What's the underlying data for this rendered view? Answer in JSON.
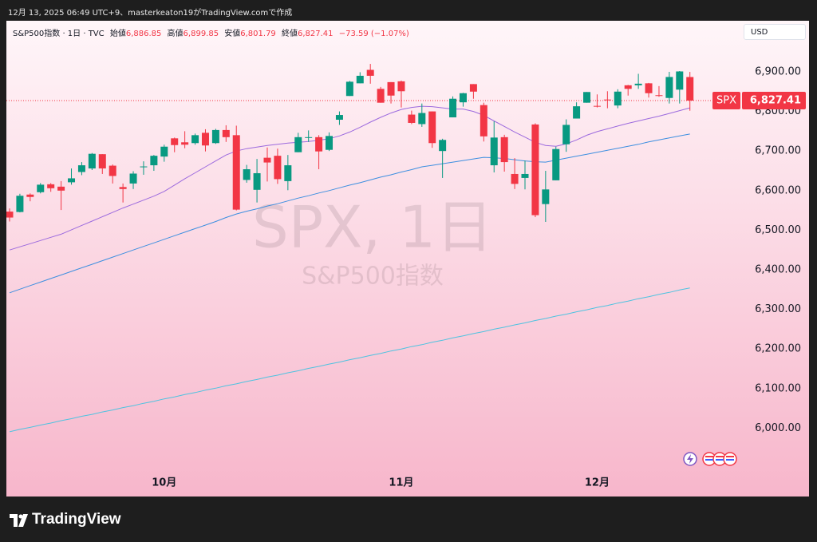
{
  "header": "12月 13, 2025 06:49 UTC+9、masterkeaton19がTradingView.comで作成",
  "logo": "TradingView",
  "chart_data": {
    "type": "candlestick",
    "symbol_line": "S&P500指数 · 1日 · TVC",
    "legend": {
      "open_label": "始値",
      "open": "6,886.85",
      "high_label": "高値",
      "high": "6,899.85",
      "low_label": "安値",
      "low": "6,801.79",
      "close_label": "終値",
      "close": "6,827.41",
      "change": "−73.59 (−1.07%)"
    },
    "currency": "USD",
    "watermark": "SPX, 1日",
    "watermark_sub": "S&P500指数",
    "last_tag": {
      "symbol": "SPX",
      "price": "6,827.41"
    },
    "up_color": "#089981",
    "down_color": "#f23645",
    "categories": [
      null,
      null,
      null,
      null,
      null,
      null,
      null,
      null,
      null,
      null,
      null,
      null,
      null,
      null,
      null,
      "10月",
      null,
      null,
      null,
      null,
      null,
      null,
      null,
      null,
      null,
      null,
      null,
      null,
      null,
      null,
      null,
      null,
      null,
      null,
      null,
      null,
      null,
      null,
      "11月",
      null,
      null,
      null,
      null,
      null,
      null,
      null,
      null,
      null,
      null,
      null,
      null,
      null,
      null,
      null,
      null,
      null,
      null,
      "12月",
      null,
      null,
      null,
      null,
      null,
      null,
      null,
      null,
      null
    ],
    "open": [
      6547,
      6546,
      6590,
      6596,
      6616,
      6610,
      6621,
      6647,
      6656,
      6692,
      6663,
      6609,
      6618,
      6661,
      6664,
      6686,
      6732,
      6722,
      6720,
      6746,
      6720,
      6753,
      6740,
      6627,
      6602,
      6683,
      6688,
      6624,
      6697,
      6733,
      6735,
      6703,
      6779,
      6839,
      6871,
      6905,
      6857,
      6874,
      6876,
      6792,
      6768,
      6800,
      6700,
      6785,
      6823,
      6869,
      6816,
      6664,
      6735,
      6642,
      6632,
      6767,
      6566,
      6626,
      6717,
      6782,
      6822,
      6814,
      6830,
      6815,
      6866,
      6866,
      6871,
      6841,
      6834,
      6855,
      6886.85
    ],
    "high": [
      6555,
      6592,
      6593,
      6619,
      6619,
      6624,
      6656,
      6672,
      6695,
      6692,
      6666,
      6618,
      6649,
      6674,
      6690,
      6716,
      6734,
      6750,
      6744,
      6755,
      6756,
      6765,
      6764,
      6665,
      6680,
      6709,
      6706,
      6690,
      6746,
      6752,
      6740,
      6747,
      6800,
      6877,
      6899,
      6920,
      6862,
      6874,
      6878,
      6802,
      6820,
      6800,
      6731,
      6838,
      6847,
      6869,
      6822,
      6775,
      6741,
      6682,
      6676,
      6770,
      6650,
      6711,
      6780,
      6823,
      6849,
      6843,
      6851,
      6856,
      6867,
      6895,
      6872,
      6864,
      6900,
      6902,
      6899.85
    ],
    "low": [
      6522,
      6545,
      6573,
      6593,
      6597,
      6551,
      6615,
      6639,
      6652,
      6642,
      6618,
      6570,
      6604,
      6640,
      6650,
      6673,
      6697,
      6707,
      6716,
      6699,
      6718,
      6723,
      6550,
      6620,
      6570,
      6623,
      6617,
      6601,
      6697,
      6723,
      6654,
      6700,
      6766,
      6839,
      6871,
      6870,
      6822,
      6820,
      6810,
      6768,
      6761,
      6708,
      6632,
      6785,
      6812,
      6832,
      6724,
      6646,
      6648,
      6604,
      6603,
      6533,
      6521,
      6626,
      6698,
      6782,
      6822,
      6810,
      6808,
      6808,
      6840,
      6857,
      6835,
      6837,
      6820,
      6820,
      6801.79
    ],
    "close": [
      6532,
      6587,
      6584,
      6615,
      6606,
      6600,
      6631,
      6664,
      6693,
      6656,
      6637,
      6604,
      6643,
      6661,
      6688,
      6711,
      6715,
      6716,
      6740,
      6714,
      6753,
      6735,
      6552,
      6654,
      6644,
      6671,
      6629,
      6664,
      6735,
      6735,
      6699,
      6738,
      6791,
      6875,
      6890,
      6890,
      6822,
      6840,
      6851,
      6771,
      6796,
      6720,
      6728,
      6832,
      6846,
      6850,
      6737,
      6734,
      6672,
      6617,
      6642,
      6538,
      6603,
      6705,
      6766,
      6813,
      6849,
      6812,
      6829,
      6850,
      6857,
      6870,
      6846,
      6840,
      6887,
      6901,
      6827.41
    ],
    "series": [
      {
        "color": "#9c6ade",
        "values": [
          6450,
          6458,
          6466,
          6474,
          6482,
          6490,
          6501,
          6512,
          6523,
          6534,
          6545,
          6556,
          6566,
          6576,
          6586,
          6598,
          6614,
          6630,
          6645,
          6660,
          6675,
          6690,
          6700,
          6706,
          6710,
          6714,
          6717,
          6720,
          6722,
          6724,
          6727,
          6731,
          6738,
          6748,
          6760,
          6773,
          6785,
          6796,
          6805,
          6810,
          6813,
          6812,
          6809,
          6806,
          6806,
          6800,
          6790,
          6776,
          6762,
          6748,
          6735,
          6722,
          6714,
          6712,
          6718,
          6728,
          6740,
          6749,
          6756,
          6763,
          6770,
          6776,
          6782,
          6788,
          6795,
          6802,
          6809
        ]
      },
      {
        "color": "#3d8fe0",
        "values": [
          6342,
          6351,
          6360,
          6369,
          6378,
          6387,
          6396,
          6405,
          6414,
          6423,
          6432,
          6441,
          6450,
          6459,
          6468,
          6477,
          6486,
          6495,
          6504,
          6513,
          6522,
          6532,
          6541,
          6548,
          6554,
          6561,
          6567,
          6574,
          6581,
          6587,
          6594,
          6600,
          6607,
          6614,
          6620,
          6627,
          6634,
          6640,
          6647,
          6653,
          6660,
          6664,
          6668,
          6672,
          6676,
          6680,
          6684,
          6683,
          6681,
          6678,
          6675,
          6673,
          6672,
          6677,
          6682,
          6687,
          6692,
          6697,
          6702,
          6707,
          6712,
          6717,
          6723,
          6728,
          6733,
          6738,
          6743
        ]
      },
      {
        "color": "#4ec3e0",
        "values": [
          5991,
          5997,
          6002,
          6008,
          6013,
          6019,
          6024,
          6030,
          6035,
          6041,
          6046,
          6052,
          6057,
          6063,
          6068,
          6074,
          6079,
          6085,
          6090,
          6096,
          6101,
          6107,
          6112,
          6118,
          6123,
          6129,
          6134,
          6140,
          6145,
          6151,
          6156,
          6162,
          6167,
          6173,
          6178,
          6184,
          6189,
          6195,
          6200,
          6206,
          6211,
          6217,
          6222,
          6228,
          6233,
          6239,
          6244,
          6250,
          6255,
          6261,
          6266,
          6272,
          6277,
          6283,
          6288,
          6294,
          6299,
          6305,
          6310,
          6316,
          6321,
          6327,
          6332,
          6338,
          6343,
          6349,
          6354
        ]
      }
    ],
    "ylim": [
      5892,
      7031
    ],
    "yticks": [
      {
        "value": 6000,
        "label": "6,000.00"
      },
      {
        "value": 6100,
        "label": "6,100.00"
      },
      {
        "value": 6200,
        "label": "6,200.00"
      },
      {
        "value": 6300,
        "label": "6,300.00"
      },
      {
        "value": 6400,
        "label": "6,400.00"
      },
      {
        "value": 6500,
        "label": "6,500.00"
      },
      {
        "value": 6600,
        "label": "6,600.00"
      },
      {
        "value": 6700,
        "label": "6,700.00"
      },
      {
        "value": 6800,
        "label": "6,800.00"
      },
      {
        "value": 6900,
        "label": "6,900.00"
      }
    ],
    "grid": false
  }
}
